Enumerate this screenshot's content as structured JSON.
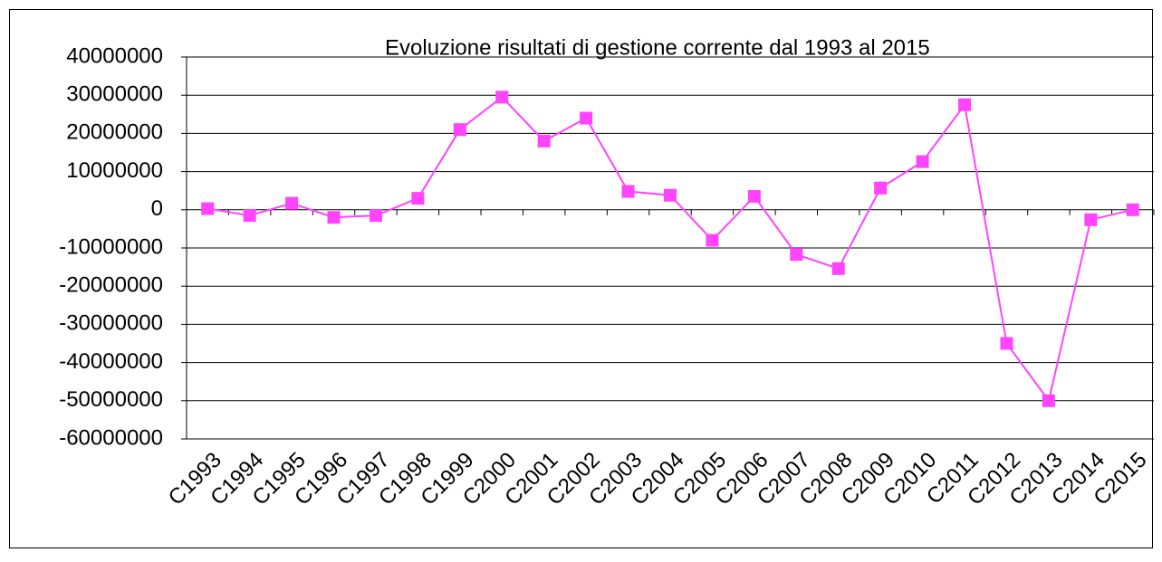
{
  "chart_data": {
    "type": "line",
    "title": "Evoluzione risultati di gestione corrente dal 1993 al 2015",
    "categories": [
      "C1993",
      "C1994",
      "C1995",
      "C1996",
      "C1997",
      "C1998",
      "C1999",
      "C2000",
      "C2001",
      "C2002",
      "C2003",
      "C2004",
      "C2005",
      "C2006",
      "C2007",
      "C2008",
      "C2009",
      "C2010",
      "C2011",
      "C2012",
      "C2013",
      "C2014",
      "C2015"
    ],
    "series": [
      {
        "color": "#ff44ff",
        "values": [
          300000,
          -1500000,
          1700000,
          -2000000,
          -1500000,
          3000000,
          21000000,
          29500000,
          18000000,
          24000000,
          4800000,
          3800000,
          -8000000,
          3500000,
          -11700000,
          -15400000,
          5700000,
          12600000,
          27500000,
          -35000000,
          -50000000,
          -2600000,
          0
        ]
      }
    ],
    "ylim": [
      -60000000,
      40000000
    ],
    "yticks": [
      -60000000,
      -50000000,
      -40000000,
      -30000000,
      -20000000,
      -10000000,
      0,
      10000000,
      20000000,
      30000000,
      40000000
    ],
    "grid": true
  }
}
